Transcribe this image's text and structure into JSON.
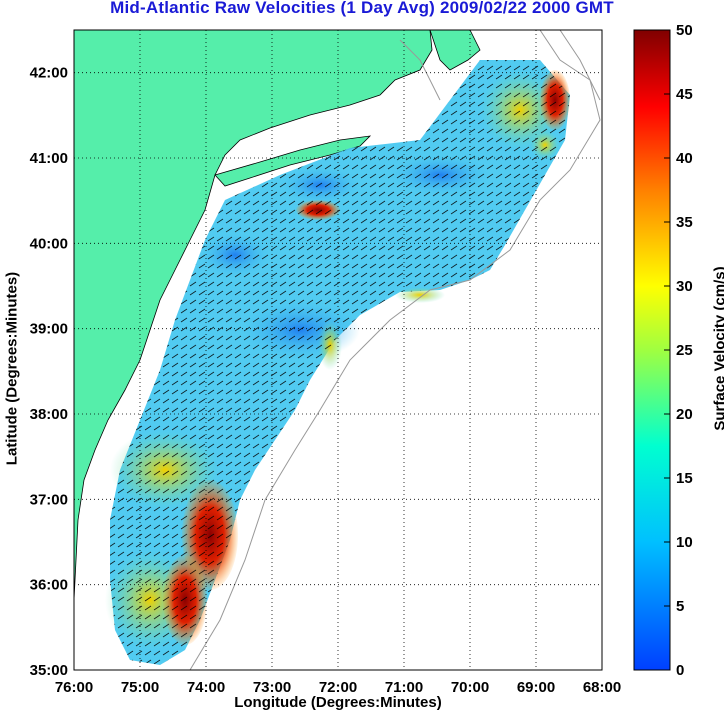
{
  "title": "Mid-Atlantic Raw Velocities (1 Day Avg) 2009/02/22 2000 GMT",
  "x_axis": {
    "label": "Longitude (Degrees:Minutes)",
    "ticks": [
      "76:00",
      "75:00",
      "74:00",
      "73:00",
      "72:00",
      "71:00",
      "70:00",
      "69:00",
      "68:00"
    ]
  },
  "y_axis": {
    "label": "Latitude (Degrees:Minutes)",
    "ticks": [
      "35:00",
      "36:00",
      "37:00",
      "38:00",
      "39:00",
      "40:00",
      "41:00",
      "42:00"
    ]
  },
  "colorbar": {
    "label": "Surface Velocity (cm/s)",
    "ticks": [
      "0",
      "5",
      "10",
      "15",
      "20",
      "25",
      "30",
      "35",
      "40",
      "45",
      "50"
    ],
    "range": [
      0,
      50
    ]
  },
  "colors": {
    "title": "#1a1ad6",
    "land": "#55eeaa",
    "grid": "#000000",
    "coast": "#000000",
    "bathymetry": "#999999"
  },
  "map": {
    "lon_range": [
      -76,
      -68
    ],
    "lat_range": [
      35,
      42.5
    ],
    "grid": "dotted"
  }
}
